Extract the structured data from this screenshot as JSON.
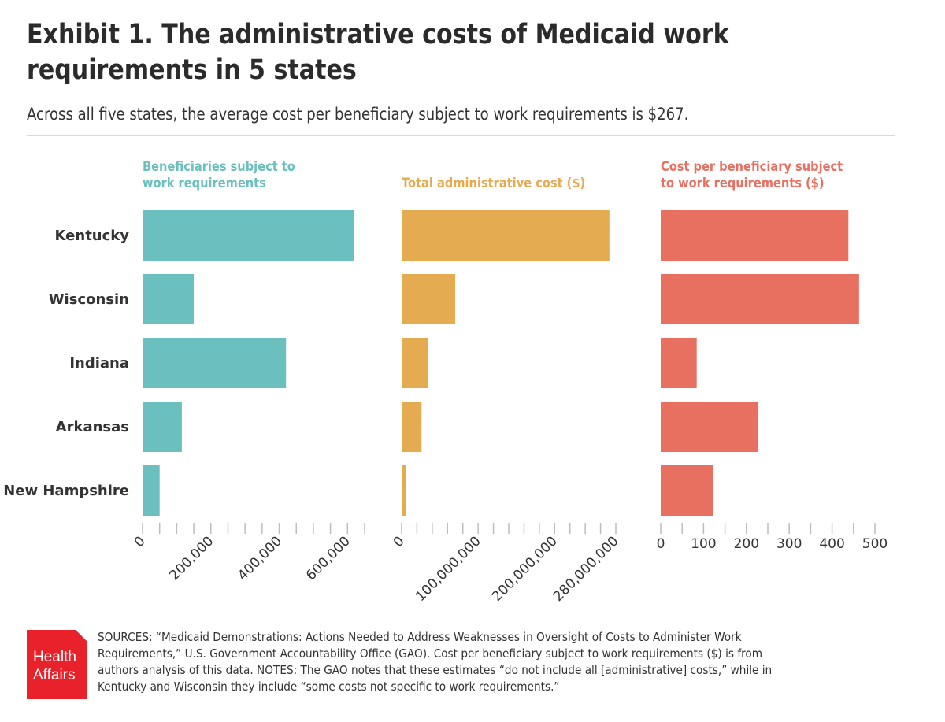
{
  "title": "Exhibit 1. The administrative costs of Medicaid work requirements in 5 states",
  "subtitle": "Across all five states, the average cost per beneficiary subject to work requirements is $267.",
  "chart_data": [
    {
      "type": "bar",
      "orientation": "horizontal",
      "title": "Beneficiaries subject to work requirements",
      "color": "#6bbfbf",
      "categories": [
        "Kentucky",
        "Wisconsin",
        "Indiana",
        "Arkansas",
        "New Hampshire"
      ],
      "values": [
        620000,
        150000,
        420000,
        115000,
        50000
      ],
      "xlim": [
        0,
        650000
      ],
      "ticks": [
        0,
        200000,
        400000,
        600000
      ],
      "tick_labels": [
        "0",
        "200,000",
        "400,000",
        "600,000"
      ],
      "minor_tick_step": 50000
    },
    {
      "type": "bar",
      "orientation": "horizontal",
      "title": "Total administrative cost ($)",
      "color": "#e5ab50",
      "categories": [
        "Kentucky",
        "Wisconsin",
        "Indiana",
        "Arkansas",
        "New Hampshire"
      ],
      "values": [
        271600000,
        70000000,
        35000000,
        26000000,
        6000000
      ],
      "xlim": [
        0,
        280000000
      ],
      "ticks": [
        0,
        100000000,
        200000000,
        280000000
      ],
      "tick_labels": [
        "0",
        "100,000,000",
        "200,000,000",
        "280,000,000"
      ],
      "minor_tick_step": 20000000
    },
    {
      "type": "bar",
      "orientation": "horizontal",
      "title": "Cost per beneficiary subject to work requirements ($)",
      "color": "#e87060",
      "categories": [
        "Kentucky",
        "Wisconsin",
        "Indiana",
        "Arkansas",
        "New Hampshire"
      ],
      "values": [
        438,
        463,
        84,
        228,
        123
      ],
      "xlim": [
        0,
        500
      ],
      "ticks": [
        0,
        100,
        200,
        300,
        400,
        500
      ],
      "tick_labels": [
        "0",
        "100",
        "200",
        "300",
        "400",
        "500"
      ],
      "minor_tick_step": 50
    }
  ],
  "logo": {
    "line1": "Health",
    "line2": "Affairs",
    "color": "#e8212b"
  },
  "sources": "SOURCES: “Medicaid Demonstrations: Actions Needed to Address Weaknesses in Oversight of Costs to Administer Work Requirements,” U.S. Government Accountability Office (GAO). Cost per beneficiary subject to work requirements ($) is from authors analysis of this data. NOTES: The GAO notes that these estimates “do not include all [administrative] costs,” while in Kentucky and Wisconsin they include “some costs not specific to work requirements.”"
}
